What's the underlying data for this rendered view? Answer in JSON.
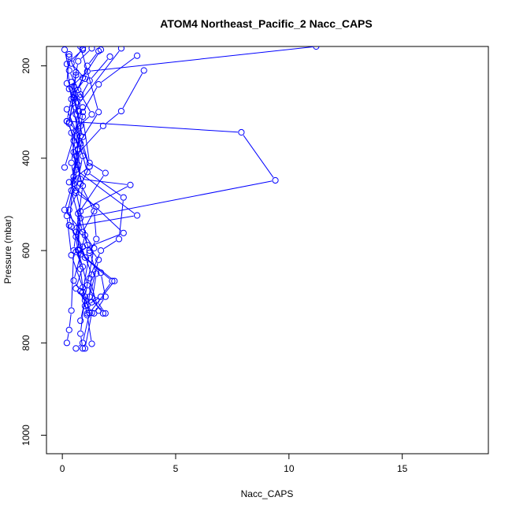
{
  "chart_data": {
    "type": "line",
    "title": "ATOM4 Northeast_Pacific_2 Nacc_CAPS",
    "xlabel": "Nacc_CAPS",
    "ylabel": "Pressure (mbar)",
    "xlim": [
      -0.7,
      18.8
    ],
    "ylim": [
      1040,
      158
    ],
    "y_reversed": true,
    "x_ticks": [
      0,
      5,
      10,
      15
    ],
    "x_tick_labels": [
      "0",
      "5",
      "10",
      "15"
    ],
    "y_ticks": [
      200,
      400,
      600,
      800,
      1000
    ],
    "y_tick_labels": [
      "200",
      "400",
      "600",
      "800",
      "1000"
    ],
    "grid": false,
    "legend": "none",
    "colors": {
      "series": "#0000ff",
      "axis": "#000000",
      "background": "#ffffff"
    },
    "marker": "open-circle",
    "series": [
      {
        "points": [
          [
            11.2,
            158
          ],
          [
            1.1,
            212
          ],
          [
            0.3,
            250
          ],
          [
            0.9,
            290
          ],
          [
            0.1,
            420
          ]
        ]
      },
      {
        "points": [
          [
            0.9,
            162
          ],
          [
            0.4,
            195
          ],
          [
            1.0,
            228
          ],
          [
            0.5,
            262
          ],
          [
            0.3,
            322
          ],
          [
            0.8,
            352
          ],
          [
            1.2,
            418
          ],
          [
            0.3,
            512
          ],
          [
            0.6,
            560
          ],
          [
            1.3,
            652
          ],
          [
            1.1,
            736
          ]
        ]
      },
      {
        "points": [
          [
            0.1,
            165
          ],
          [
            0.3,
            210
          ],
          [
            0.8,
            262
          ],
          [
            0.6,
            305
          ],
          [
            0.7,
            415
          ],
          [
            0.5,
            455
          ],
          [
            0.2,
            525
          ],
          [
            0.4,
            610
          ],
          [
            0.9,
            680
          ],
          [
            1.2,
            735
          ],
          [
            0.9,
            800
          ],
          [
            0.6,
            812
          ]
        ]
      },
      {
        "points": [
          [
            2.6,
            162
          ],
          [
            0.6,
            290
          ],
          [
            0.2,
            320
          ],
          [
            7.9,
            344
          ],
          [
            9.4,
            448
          ],
          [
            0.8,
            530
          ],
          [
            0.6,
            570
          ],
          [
            0.8,
            640
          ],
          [
            1.0,
            720
          ]
        ]
      },
      {
        "points": [
          [
            3.3,
            178
          ],
          [
            1.6,
            240
          ],
          [
            0.9,
            300
          ],
          [
            0.7,
            380
          ],
          [
            0.8,
            455
          ],
          [
            1.4,
            515
          ],
          [
            1.5,
            575
          ],
          [
            1.2,
            605
          ],
          [
            0.9,
            690
          ],
          [
            1.1,
            740
          ],
          [
            1.3,
            802
          ]
        ]
      },
      {
        "points": [
          [
            3.6,
            210
          ],
          [
            2.6,
            298
          ],
          [
            1.8,
            330
          ],
          [
            0.6,
            395
          ],
          [
            0.4,
            470
          ],
          [
            0.9,
            560
          ],
          [
            1.2,
            600
          ],
          [
            1.5,
            650
          ],
          [
            1.3,
            712
          ]
        ]
      },
      {
        "points": [
          [
            2.1,
            180
          ],
          [
            1.2,
            232
          ],
          [
            0.8,
            268
          ],
          [
            0.2,
            294
          ],
          [
            0.6,
            340
          ],
          [
            1.1,
            430
          ],
          [
            2.7,
            485
          ],
          [
            2.5,
            575
          ],
          [
            1.7,
            600
          ],
          [
            1.2,
            660
          ],
          [
            1.6,
            730
          ]
        ]
      },
      {
        "points": [
          [
            1.7,
            165
          ],
          [
            0.9,
            226
          ],
          [
            0.5,
            268
          ],
          [
            0.3,
            325
          ],
          [
            0.5,
            362
          ],
          [
            0.8,
            445
          ],
          [
            3.0,
            458
          ],
          [
            0.8,
            515
          ],
          [
            0.7,
            598
          ],
          [
            1.7,
            648
          ],
          [
            1.9,
            700
          ],
          [
            1.4,
            736
          ]
        ]
      },
      {
        "points": [
          [
            1.3,
            162
          ],
          [
            0.7,
            190
          ],
          [
            0.5,
            244
          ],
          [
            0.9,
            310
          ],
          [
            1.2,
            410
          ],
          [
            1.9,
            432
          ],
          [
            0.7,
            520
          ],
          [
            0.7,
            600
          ],
          [
            1.1,
            675
          ],
          [
            1.5,
            708
          ],
          [
            1.9,
            736
          ]
        ]
      },
      {
        "points": [
          [
            1.6,
            168
          ],
          [
            1.1,
            200
          ],
          [
            0.7,
            252
          ],
          [
            1.3,
            305
          ],
          [
            0.4,
            345
          ],
          [
            0.6,
            425
          ],
          [
            3.3,
            524
          ],
          [
            0.4,
            548
          ],
          [
            1.0,
            615
          ],
          [
            2.3,
            666
          ],
          [
            1.2,
            735
          ]
        ]
      },
      {
        "points": [
          [
            0.9,
            165
          ],
          [
            0.2,
            196
          ],
          [
            0.4,
            272
          ],
          [
            0.8,
            368
          ],
          [
            1.2,
            418
          ],
          [
            0.3,
            452
          ],
          [
            2.7,
            562
          ],
          [
            0.6,
            603
          ],
          [
            0.9,
            635
          ],
          [
            0.6,
            682
          ],
          [
            1.0,
            708
          ],
          [
            0.8,
            752
          ]
        ]
      },
      {
        "points": [
          [
            0.3,
            180
          ],
          [
            0.6,
            214
          ],
          [
            0.5,
            270
          ],
          [
            0.9,
            354
          ],
          [
            0.5,
            440
          ],
          [
            0.3,
            545
          ],
          [
            0.9,
            592
          ],
          [
            0.5,
            665
          ],
          [
            0.8,
            688
          ],
          [
            1.3,
            735
          ],
          [
            1.0,
            812
          ]
        ]
      },
      {
        "points": [
          [
            0.6,
            220
          ],
          [
            0.2,
            320
          ],
          [
            0.9,
            395
          ],
          [
            0.6,
            470
          ],
          [
            1.1,
            588
          ],
          [
            1.6,
            620
          ],
          [
            1.2,
            700
          ],
          [
            1.8,
            736
          ]
        ]
      },
      {
        "points": [
          [
            0.4,
            235
          ],
          [
            0.8,
            330
          ],
          [
            0.5,
            448
          ],
          [
            0.1,
            512
          ],
          [
            1.0,
            567
          ],
          [
            0.8,
            608
          ],
          [
            2.2,
            666
          ],
          [
            1.7,
            700
          ],
          [
            1.1,
            718
          ]
        ]
      },
      {
        "points": [
          [
            0.3,
            175
          ],
          [
            0.2,
            238
          ],
          [
            0.7,
            298
          ],
          [
            0.4,
            410
          ],
          [
            0.6,
            475
          ],
          [
            1.5,
            505
          ],
          [
            0.9,
            560
          ],
          [
            1.4,
            595
          ],
          [
            1.0,
            700
          ],
          [
            0.8,
            780
          ],
          [
            0.9,
            812
          ]
        ]
      },
      {
        "points": [
          [
            0.8,
            158
          ],
          [
            1.6,
            300
          ],
          [
            0.5,
            387
          ],
          [
            0.9,
            460
          ],
          [
            0.5,
            600
          ],
          [
            0.4,
            730
          ],
          [
            0.3,
            772
          ],
          [
            0.2,
            800
          ]
        ]
      }
    ]
  }
}
